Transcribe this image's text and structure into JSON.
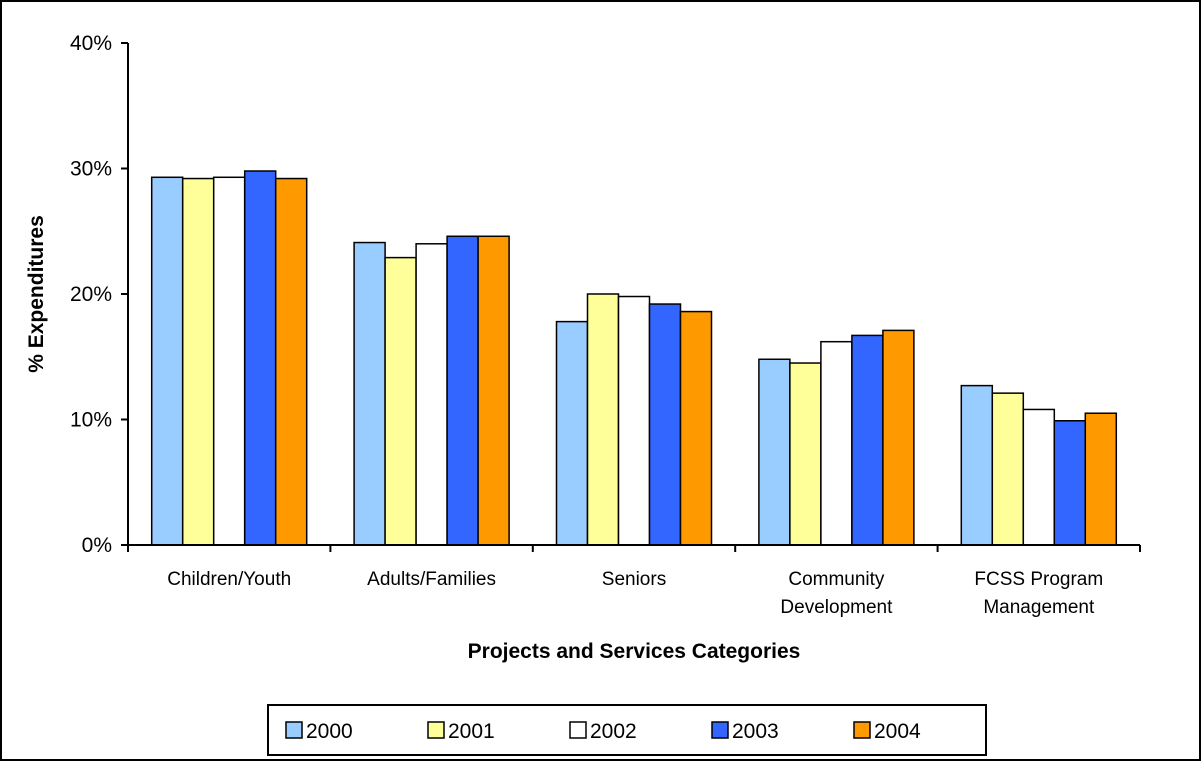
{
  "chart_data": {
    "type": "bar",
    "title": "",
    "xlabel": "Projects and Services Categories",
    "ylabel": "% Expenditures",
    "ylim": [
      0,
      40
    ],
    "y_ticks": [
      0,
      10,
      20,
      30,
      40
    ],
    "y_tick_labels": [
      "0%",
      "10%",
      "20%",
      "30%",
      "40%"
    ],
    "categories": [
      [
        "Children/Youth"
      ],
      [
        "Adults/Families"
      ],
      [
        "Seniors"
      ],
      [
        "Community",
        "Development"
      ],
      [
        "FCSS Program",
        "Management"
      ]
    ],
    "series": [
      {
        "name": "2000",
        "color": "#99CCFF",
        "values": [
          29.3,
          24.1,
          17.8,
          14.8,
          12.7
        ]
      },
      {
        "name": "2001",
        "color": "#FFFF99",
        "values": [
          29.2,
          22.9,
          20.0,
          14.5,
          12.1
        ]
      },
      {
        "name": "2002",
        "color": "#FFFFFF",
        "values": [
          29.3,
          24.0,
          19.8,
          16.2,
          10.8
        ]
      },
      {
        "name": "2003",
        "color": "#3366FF",
        "values": [
          29.8,
          24.6,
          19.2,
          16.7,
          9.9
        ]
      },
      {
        "name": "2004",
        "color": "#FF9900",
        "values": [
          29.2,
          24.6,
          18.6,
          17.1,
          10.5
        ]
      }
    ],
    "grid": false,
    "legend_position": "bottom"
  }
}
